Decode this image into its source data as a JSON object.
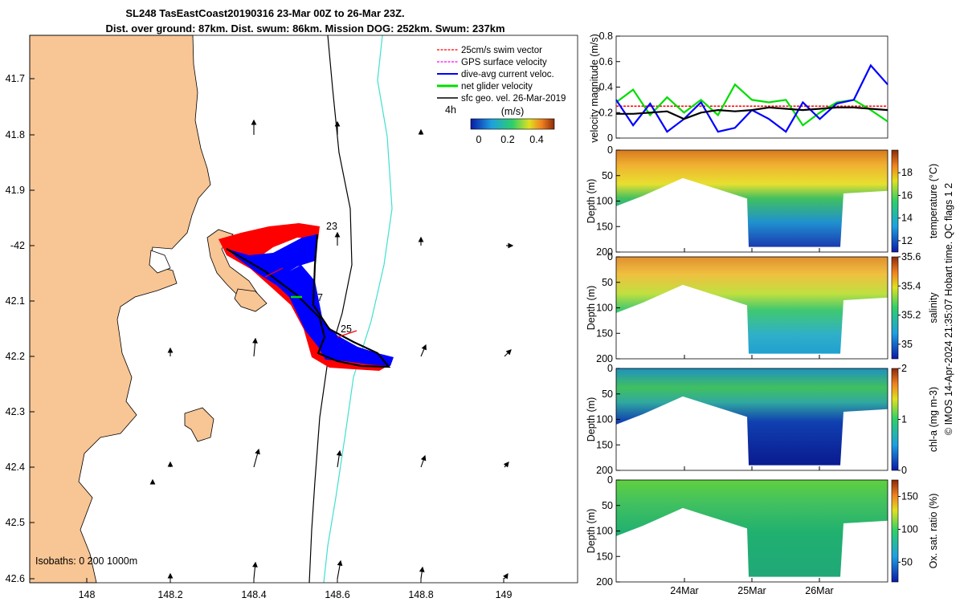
{
  "title": {
    "line1": "SL248 TasEastCoast20190316 23-Mar 00Z to 26-Mar 23Z.",
    "line2": "Dist. over ground: 87km. Dist. swum: 86km. Mission DOG: 252km. Swum: 237km"
  },
  "map": {
    "lon_ticks": [
      "148",
      "148.2",
      "148.4",
      "148.6",
      "148.8",
      "149"
    ],
    "lat_ticks": [
      "41.7",
      "41.8",
      "41.9",
      "-42",
      "42.1",
      "42.2",
      "42.3",
      "42.4",
      "42.5",
      "42.6"
    ],
    "legend": [
      {
        "label": "25cm/s swim vector",
        "color": "#ff0000"
      },
      {
        "label": "GPS surface velocity",
        "color": "#ff00ff"
      },
      {
        "label": "dive-avg current veloc.",
        "color": "#0000ff"
      },
      {
        "label": "net glider velocity",
        "color": "#00dd00"
      },
      {
        "label": "sfc geo. vel. 26-Mar-2019",
        "color": "#000000"
      }
    ],
    "scale_arrow_label": "4h",
    "colorbar": {
      "label": "(m/s)",
      "ticks": [
        "0",
        "0.2",
        "0.4"
      ]
    },
    "day_labels": [
      "23",
      "7",
      "25"
    ],
    "isobaths_label": "Isobaths: 0   200  1000m",
    "colors": {
      "land": "#f8c594",
      "track_red": "#ff0000",
      "track_blue": "#0000ff",
      "contour_1000": "#000000",
      "contour_200": "#40e0d0"
    }
  },
  "panels": {
    "velocity": {
      "ylabel": "velocity magnitude (m/s)",
      "yticks": [
        "0",
        "0.2",
        "0.4",
        "0.6",
        "0.8"
      ]
    },
    "temperature": {
      "cblabel": "temperature (°C)",
      "cbticks": [
        "12",
        "14",
        "16",
        "18"
      ]
    },
    "salinity": {
      "cblabel": "salinity",
      "cbticks": [
        "35",
        "35.2",
        "35.4",
        "35.6"
      ]
    },
    "chla": {
      "cblabel": "chl-a (mg m-3)",
      "cbticks": [
        "0",
        "1",
        "2"
      ]
    },
    "oxygen": {
      "cblabel": "Ox. sat. ratio (%)",
      "cbticks": [
        "50",
        "100",
        "150"
      ]
    },
    "depth_label": "Depth (m)",
    "depth_ticks": [
      "0",
      "50",
      "100",
      "150",
      "200"
    ],
    "time_ticks": [
      "24Mar",
      "25Mar",
      "26Mar"
    ],
    "side_note": "© IMOS 14-Apr-2024 21:35:07 Hobart time. QC flags 1  2"
  },
  "chart_data": {
    "type": "line",
    "title": "velocity magnitude",
    "ylabel": "velocity magnitude (m/s)",
    "ylim": [
      0,
      0.8
    ],
    "x_days": [
      23.0,
      23.25,
      23.5,
      23.75,
      24.0,
      24.25,
      24.5,
      24.75,
      25.0,
      25.25,
      25.5,
      25.75,
      26.0,
      26.25,
      26.5,
      26.75,
      27.0
    ],
    "series": [
      {
        "name": "swim vector",
        "color": "#ff0000",
        "values": [
          0.25,
          0.25,
          0.25,
          0.25,
          0.25,
          0.25,
          0.25,
          0.25,
          0.25,
          0.25,
          0.25,
          0.25,
          0.25,
          0.25,
          0.25,
          0.25,
          0.25
        ]
      },
      {
        "name": "net glider velocity",
        "color": "#00dd00",
        "values": [
          0.28,
          0.38,
          0.18,
          0.32,
          0.2,
          0.3,
          0.18,
          0.42,
          0.3,
          0.28,
          0.3,
          0.1,
          0.2,
          0.28,
          0.3,
          0.22,
          0.13
        ]
      },
      {
        "name": "dive-avg current veloc.",
        "color": "#0000ff",
        "values": [
          0.3,
          0.1,
          0.27,
          0.05,
          0.15,
          0.28,
          0.05,
          0.08,
          0.22,
          0.15,
          0.05,
          0.28,
          0.15,
          0.27,
          0.3,
          0.57,
          0.42
        ]
      },
      {
        "name": "sfc geo. vel.",
        "color": "#000000",
        "values": [
          0.19,
          0.19,
          0.2,
          0.21,
          0.15,
          0.2,
          0.22,
          0.21,
          0.22,
          0.24,
          0.23,
          0.22,
          0.23,
          0.24,
          0.24,
          0.23,
          0.22
        ]
      }
    ]
  }
}
